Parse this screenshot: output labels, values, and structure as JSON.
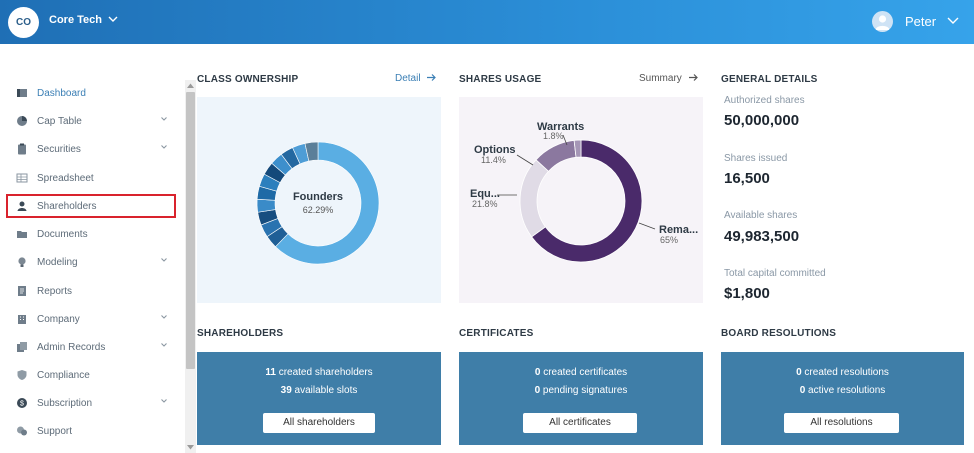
{
  "header": {
    "org_initials": "CO",
    "org_name": "Core Tech",
    "user_name": "Peter"
  },
  "sidebar": {
    "items": [
      {
        "label": "Dashboard",
        "icon": "dashboard-icon"
      },
      {
        "label": "Cap Table",
        "icon": "pie-icon"
      },
      {
        "label": "Securities",
        "icon": "clipboard-icon"
      },
      {
        "label": "Spreadsheet",
        "icon": "grid-icon"
      },
      {
        "label": "Shareholders",
        "icon": "person-icon"
      },
      {
        "label": "Documents",
        "icon": "folder-icon"
      },
      {
        "label": "Modeling",
        "icon": "bulb-icon"
      },
      {
        "label": "Reports",
        "icon": "report-icon"
      },
      {
        "label": "Company",
        "icon": "building-icon"
      },
      {
        "label": "Admin Records",
        "icon": "records-icon"
      },
      {
        "label": "Compliance",
        "icon": "shield-icon"
      },
      {
        "label": "Subscription",
        "icon": "dollar-icon"
      },
      {
        "label": "Support",
        "icon": "chat-icon"
      }
    ]
  },
  "class_ownership": {
    "title": "CLASS OWNERSHIP",
    "link": "Detail",
    "center_label": "Founders",
    "center_value": "62.29%"
  },
  "shares_usage": {
    "title": "SHARES USAGE",
    "link": "Summary",
    "labels": [
      {
        "name": "Warrants",
        "pct": "1.8%"
      },
      {
        "name": "Options",
        "pct": "11.4%"
      },
      {
        "name": "Equ...",
        "pct": "21.8%"
      },
      {
        "name": "Rema...",
        "pct": "65%"
      }
    ]
  },
  "general_details": {
    "title": "GENERAL DETAILS",
    "rows": [
      {
        "label": "Authorized shares",
        "value": "50,000,000"
      },
      {
        "label": "Shares issued",
        "value": "16,500"
      },
      {
        "label": "Available shares",
        "value": "49,983,500"
      },
      {
        "label": "Total capital committed",
        "value": "$1,800"
      }
    ]
  },
  "shareholders": {
    "title": "SHAREHOLDERS",
    "line1_num": "11",
    "line1_text": "created shareholders",
    "line2_num": "39",
    "line2_text": "available slots",
    "button": "All shareholders"
  },
  "certificates": {
    "title": "CERTIFICATES",
    "line1_num": "0",
    "line1_text": "created certificates",
    "line2_num": "0",
    "line2_text": "pending signatures",
    "button": "All certificates"
  },
  "board_resolutions": {
    "title": "BOARD RESOLUTIONS",
    "line1_num": "0",
    "line1_text": "created resolutions",
    "line2_num": "0",
    "line2_text": "active resolutions",
    "button": "All resolutions"
  },
  "colors": {
    "header_start": "#1f6fb5",
    "header_end": "#36a3ea",
    "card_bg": "#3f7ea8",
    "founders": "#5aaee3",
    "remaining": "#4a2a6a",
    "highlight_box": "#d9232d"
  },
  "chart_data": [
    {
      "type": "pie",
      "labels": [
        "Founders"
      ],
      "values": [
        62.29
      ]
    },
    {
      "type": "pie",
      "labels": [
        "Warrants",
        "Options",
        "Equ...",
        "Rema..."
      ],
      "values": [
        1.8,
        11.4,
        21.8,
        65
      ]
    }
  ]
}
